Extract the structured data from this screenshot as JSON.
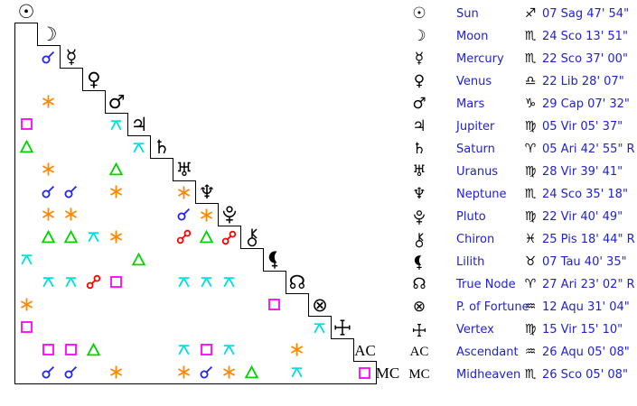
{
  "style": {
    "background": "#ffffff",
    "grid_line_color": "#000000",
    "glyph_color": "#000000",
    "text_color": "#2222cc"
  },
  "aspect_style": {
    "conjunction": {
      "color": "#2222ff"
    },
    "sextile": {
      "color": "#ff8800"
    },
    "square": {
      "color": "#ff00ff"
    },
    "trine": {
      "color": "#00d500"
    },
    "opposition": {
      "color": "#ff0000"
    },
    "quincunx": {
      "color": "#00dfdf"
    }
  },
  "chart_data": {
    "type": "table",
    "title": "Natal aspect grid and planet positions",
    "bodies": [
      {
        "id": "sun",
        "name": "Sun",
        "sign": "Sagittarius",
        "position": "07 Sag 47' 54\"",
        "retrograde": false
      },
      {
        "id": "moon",
        "name": "Moon",
        "sign": "Scorpio",
        "position": "24 Sco 13' 51\"",
        "retrograde": false
      },
      {
        "id": "mercury",
        "name": "Mercury",
        "sign": "Scorpio",
        "position": "22 Sco 37' 00\"",
        "retrograde": false
      },
      {
        "id": "venus",
        "name": "Venus",
        "sign": "Libra",
        "position": "22 Lib 28' 07\"",
        "retrograde": false
      },
      {
        "id": "mars",
        "name": "Mars",
        "sign": "Capricorn",
        "position": "29 Cap 07' 32\"",
        "retrograde": false
      },
      {
        "id": "jupiter",
        "name": "Jupiter",
        "sign": "Virgo",
        "position": "05 Vir 05' 37\"",
        "retrograde": false
      },
      {
        "id": "saturn",
        "name": "Saturn",
        "sign": "Aries",
        "position": "05 Ari 42' 55\" R",
        "retrograde": true
      },
      {
        "id": "uranus",
        "name": "Uranus",
        "sign": "Virgo",
        "position": "28 Vir 39' 41\"",
        "retrograde": false
      },
      {
        "id": "neptune",
        "name": "Neptune",
        "sign": "Scorpio",
        "position": "24 Sco 35' 18\"",
        "retrograde": false
      },
      {
        "id": "pluto",
        "name": "Pluto",
        "sign": "Virgo",
        "position": "22 Vir 40' 49\"",
        "retrograde": false
      },
      {
        "id": "chiron",
        "name": "Chiron",
        "sign": "Pisces",
        "position": "25 Pis 18' 44\" R",
        "retrograde": true
      },
      {
        "id": "lilith",
        "name": "Lilith",
        "sign": "Taurus",
        "position": "07 Tau 40' 35\"",
        "retrograde": false
      },
      {
        "id": "true-node",
        "name": "True Node",
        "sign": "Aries",
        "position": "27 Ari 23' 02\" R",
        "retrograde": true
      },
      {
        "id": "fortune",
        "name": "P. of Fortune",
        "sign": "Aquarius",
        "position": "12 Aqu 31' 04\"",
        "retrograde": false
      },
      {
        "id": "vertex",
        "name": "Vertex",
        "sign": "Virgo",
        "position": "15 Vir 15' 10\"",
        "retrograde": false
      },
      {
        "id": "ascendant",
        "name": "Ascendant",
        "sign": "Aquarius",
        "position": "26 Aqu 05' 08\"",
        "retrograde": false,
        "diagonal_text": "AC"
      },
      {
        "id": "midheaven",
        "name": "Midheaven",
        "sign": "Scorpio",
        "position": "26 Sco 05' 08\"",
        "retrograde": false,
        "diagonal_text": "MC"
      }
    ],
    "aspects": [
      {
        "row": "mercury",
        "col": "moon",
        "type": "conjunction"
      },
      {
        "row": "mars",
        "col": "moon",
        "type": "sextile"
      },
      {
        "row": "jupiter",
        "col": "sun",
        "type": "square"
      },
      {
        "row": "jupiter",
        "col": "mars",
        "type": "quincunx"
      },
      {
        "row": "saturn",
        "col": "sun",
        "type": "trine"
      },
      {
        "row": "saturn",
        "col": "jupiter",
        "type": "quincunx"
      },
      {
        "row": "uranus",
        "col": "moon",
        "type": "sextile"
      },
      {
        "row": "uranus",
        "col": "mars",
        "type": "trine"
      },
      {
        "row": "neptune",
        "col": "moon",
        "type": "conjunction"
      },
      {
        "row": "neptune",
        "col": "mercury",
        "type": "conjunction"
      },
      {
        "row": "neptune",
        "col": "mars",
        "type": "sextile"
      },
      {
        "row": "neptune",
        "col": "uranus",
        "type": "sextile"
      },
      {
        "row": "pluto",
        "col": "moon",
        "type": "sextile"
      },
      {
        "row": "pluto",
        "col": "mercury",
        "type": "sextile"
      },
      {
        "row": "pluto",
        "col": "uranus",
        "type": "conjunction"
      },
      {
        "row": "pluto",
        "col": "neptune",
        "type": "sextile"
      },
      {
        "row": "chiron",
        "col": "moon",
        "type": "trine"
      },
      {
        "row": "chiron",
        "col": "mercury",
        "type": "trine"
      },
      {
        "row": "chiron",
        "col": "venus",
        "type": "quincunx"
      },
      {
        "row": "chiron",
        "col": "mars",
        "type": "sextile"
      },
      {
        "row": "chiron",
        "col": "uranus",
        "type": "opposition"
      },
      {
        "row": "chiron",
        "col": "neptune",
        "type": "trine"
      },
      {
        "row": "chiron",
        "col": "pluto",
        "type": "opposition"
      },
      {
        "row": "lilith",
        "col": "sun",
        "type": "quincunx"
      },
      {
        "row": "lilith",
        "col": "jupiter",
        "type": "trine"
      },
      {
        "row": "true-node",
        "col": "moon",
        "type": "quincunx"
      },
      {
        "row": "true-node",
        "col": "mercury",
        "type": "quincunx"
      },
      {
        "row": "true-node",
        "col": "venus",
        "type": "opposition"
      },
      {
        "row": "true-node",
        "col": "mars",
        "type": "square"
      },
      {
        "row": "true-node",
        "col": "uranus",
        "type": "quincunx"
      },
      {
        "row": "true-node",
        "col": "neptune",
        "type": "quincunx"
      },
      {
        "row": "true-node",
        "col": "pluto",
        "type": "quincunx"
      },
      {
        "row": "fortune",
        "col": "sun",
        "type": "sextile"
      },
      {
        "row": "fortune",
        "col": "lilith",
        "type": "square"
      },
      {
        "row": "vertex",
        "col": "sun",
        "type": "square"
      },
      {
        "row": "vertex",
        "col": "fortune",
        "type": "quincunx"
      },
      {
        "row": "ascendant",
        "col": "moon",
        "type": "square"
      },
      {
        "row": "ascendant",
        "col": "mercury",
        "type": "square"
      },
      {
        "row": "ascendant",
        "col": "venus",
        "type": "trine"
      },
      {
        "row": "ascendant",
        "col": "uranus",
        "type": "quincunx"
      },
      {
        "row": "ascendant",
        "col": "neptune",
        "type": "square"
      },
      {
        "row": "ascendant",
        "col": "pluto",
        "type": "quincunx"
      },
      {
        "row": "ascendant",
        "col": "true-node",
        "type": "sextile"
      },
      {
        "row": "midheaven",
        "col": "moon",
        "type": "conjunction"
      },
      {
        "row": "midheaven",
        "col": "mercury",
        "type": "conjunction"
      },
      {
        "row": "midheaven",
        "col": "mars",
        "type": "sextile"
      },
      {
        "row": "midheaven",
        "col": "uranus",
        "type": "sextile"
      },
      {
        "row": "midheaven",
        "col": "neptune",
        "type": "conjunction"
      },
      {
        "row": "midheaven",
        "col": "pluto",
        "type": "sextile"
      },
      {
        "row": "midheaven",
        "col": "chiron",
        "type": "trine"
      },
      {
        "row": "midheaven",
        "col": "true-node",
        "type": "quincunx"
      },
      {
        "row": "midheaven",
        "col": "ascendant",
        "type": "square"
      }
    ]
  }
}
